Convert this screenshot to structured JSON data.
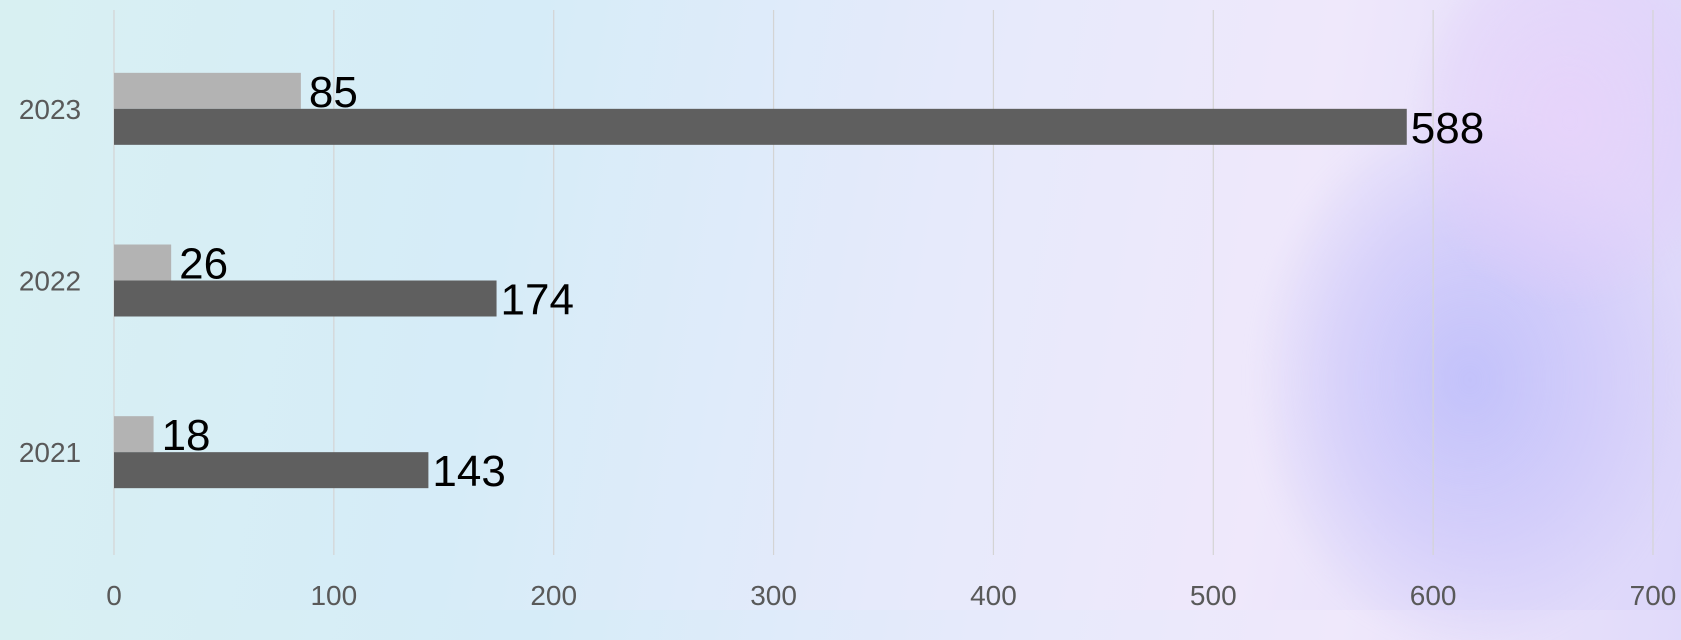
{
  "chart_data": {
    "type": "bar",
    "orientation": "horizontal",
    "categories": [
      "2021",
      "2022",
      "2023"
    ],
    "series": [
      {
        "values": [
          18,
          26,
          85
        ],
        "color": "#b3b3b3"
      },
      {
        "values": [
          143,
          174,
          588
        ],
        "color": "#5f5f5f"
      }
    ],
    "xlim": [
      0,
      700
    ],
    "xticks": [
      0,
      100,
      200,
      300,
      400,
      500,
      600,
      700
    ],
    "grid": true,
    "legend": "none",
    "data_labels": true
  }
}
